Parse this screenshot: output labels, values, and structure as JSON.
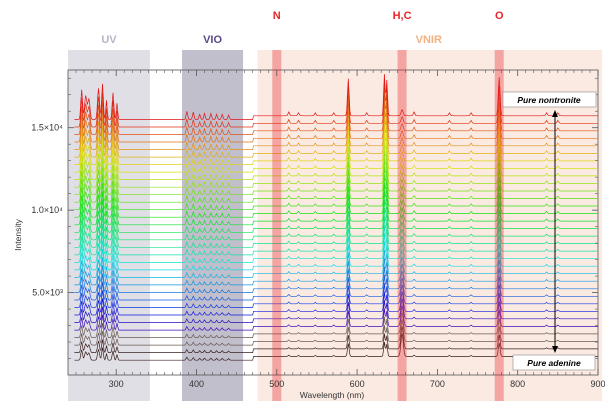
{
  "chart_data": {
    "type": "line",
    "xlabel": "Wavelength (nm)",
    "ylabel": "Intensity",
    "xlim": [
      240,
      900
    ],
    "ylim": [
      0,
      18500
    ],
    "x_ticks": [
      300,
      400,
      500,
      600,
      700,
      800,
      900
    ],
    "x_tick_labels": [
      "300",
      "400",
      "500",
      "600",
      "700",
      "800",
      "900"
    ],
    "y_ticks": [
      5000,
      10000,
      15000
    ],
    "y_tick_labels": [
      "5.0×10³",
      "1.0×10⁴",
      "1.5×10⁴"
    ],
    "regions": [
      {
        "name": "UV",
        "x_range": [
          240,
          342
        ],
        "color": "#c9c9d4",
        "label_color": "#b7b4c8"
      },
      {
        "name": "VIO",
        "x_range": [
          382,
          458
        ],
        "color": "#8e8aa3",
        "label_color": "#5a4a86"
      },
      {
        "name": "VNIR",
        "x_range": [
          476,
          905
        ],
        "color": "#f6dccf",
        "label_color": "#f3b080"
      }
    ],
    "emission_lines": [
      {
        "label": "N",
        "x": 500
      },
      {
        "label": "H,C",
        "x": 656
      },
      {
        "label": "O",
        "x": 777
      }
    ],
    "annotations": {
      "top": "Pure nontronite",
      "bottom": "Pure adenine"
    },
    "series_count": 33,
    "baseline_start": 900,
    "baseline_end": 15500
  }
}
